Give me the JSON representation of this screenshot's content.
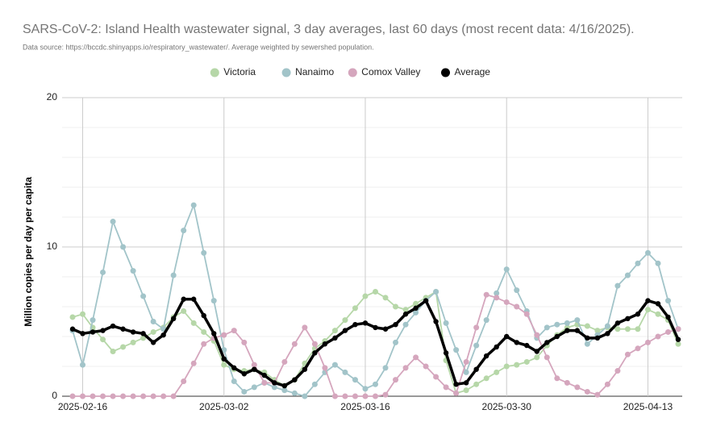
{
  "chart_data": {
    "type": "line",
    "title": "SARS-CoV-2: Island Health wastewater signal, 3 day averages, last 60 days (most recent data: 4/16/2025).",
    "subtitle": "Data source: https://bccdc.shinyapps.io/respiratory_wastewater/. Average weighted by sewershed population.",
    "y_label": "Million copies per day per capita",
    "legend": "top",
    "grid": true,
    "x": [
      "2025-02-15",
      "2025-02-16",
      "2025-02-17",
      "2025-02-18",
      "2025-02-19",
      "2025-02-20",
      "2025-02-21",
      "2025-02-22",
      "2025-02-23",
      "2025-02-24",
      "2025-02-25",
      "2025-02-26",
      "2025-02-27",
      "2025-02-28",
      "2025-03-01",
      "2025-03-02",
      "2025-03-03",
      "2025-03-04",
      "2025-03-05",
      "2025-03-06",
      "2025-03-07",
      "2025-03-08",
      "2025-03-09",
      "2025-03-10",
      "2025-03-11",
      "2025-03-12",
      "2025-03-13",
      "2025-03-14",
      "2025-03-15",
      "2025-03-16",
      "2025-03-17",
      "2025-03-18",
      "2025-03-19",
      "2025-03-20",
      "2025-03-21",
      "2025-03-22",
      "2025-03-23",
      "2025-03-24",
      "2025-03-25",
      "2025-03-26",
      "2025-03-27",
      "2025-03-28",
      "2025-03-29",
      "2025-03-30",
      "2025-03-31",
      "2025-04-01",
      "2025-04-02",
      "2025-04-03",
      "2025-04-04",
      "2025-04-05",
      "2025-04-06",
      "2025-04-07",
      "2025-04-08",
      "2025-04-09",
      "2025-04-10",
      "2025-04-11",
      "2025-04-12",
      "2025-04-13",
      "2025-04-14",
      "2025-04-15",
      "2025-04-16"
    ],
    "xlim": [
      "2025-02-15",
      "2025-04-16"
    ],
    "xticks": [
      "2025-02-16",
      "2025-03-02",
      "2025-03-16",
      "2025-03-30",
      "2025-04-13"
    ],
    "ylim": [
      0,
      20
    ],
    "yticks": [
      0,
      10,
      20
    ],
    "minor_yticks": [
      2,
      4,
      6,
      8,
      12,
      14,
      16,
      18
    ],
    "series": [
      {
        "name": "Victoria",
        "color": "#b6d7a8",
        "values": [
          5.3,
          5.5,
          4.6,
          3.8,
          3.0,
          3.3,
          3.6,
          3.9,
          4.3,
          4.6,
          5.3,
          5.7,
          4.9,
          4.3,
          3.7,
          2.1,
          1.8,
          1.7,
          1.8,
          1.6,
          1.1,
          0.7,
          1.1,
          2.2,
          3.2,
          3.7,
          4.4,
          5.1,
          5.9,
          6.7,
          7.0,
          6.6,
          6.0,
          5.8,
          6.2,
          6.6,
          7.0,
          2.4,
          0.2,
          0.4,
          0.8,
          1.2,
          1.6,
          2.0,
          2.1,
          2.3,
          2.6,
          3.4,
          4.1,
          4.6,
          4.8,
          4.7,
          4.4,
          4.6,
          4.5,
          4.5,
          4.5,
          5.8,
          5.5,
          5.1,
          3.5
        ]
      },
      {
        "name": "Nanaimo",
        "color": "#a2c4c9",
        "values": [
          4.4,
          2.1,
          5.1,
          8.3,
          11.7,
          10.0,
          8.4,
          6.7,
          5.0,
          4.5,
          8.1,
          11.1,
          12.8,
          9.6,
          6.4,
          3.1,
          1.0,
          0.3,
          0.6,
          0.9,
          0.6,
          0.4,
          0.2,
          0.0,
          0.8,
          1.6,
          2.1,
          1.6,
          1.1,
          0.5,
          0.8,
          1.9,
          3.6,
          4.8,
          5.6,
          6.4,
          7.0,
          4.9,
          3.1,
          1.6,
          3.4,
          5.1,
          6.9,
          8.5,
          7.1,
          5.7,
          3.9,
          4.6,
          4.8,
          4.9,
          5.1,
          3.5,
          4.1,
          4.7,
          7.4,
          8.1,
          8.9,
          9.6,
          8.9,
          6.4,
          4.5
        ]
      },
      {
        "name": "Comox Valley",
        "color": "#d5a6bd",
        "values": [
          0,
          0,
          0,
          0,
          0,
          0,
          0,
          0,
          0,
          0,
          0,
          1.0,
          2.2,
          3.5,
          3.9,
          4.1,
          4.4,
          3.6,
          2.1,
          0.9,
          0.9,
          2.3,
          3.5,
          4.6,
          3.5,
          1.9,
          0,
          0,
          0,
          0,
          0,
          0.1,
          1.1,
          1.9,
          2.6,
          2.0,
          1.3,
          0.6,
          0.2,
          2.3,
          4.6,
          6.8,
          6.6,
          6.3,
          6.0,
          5.5,
          4.1,
          2.6,
          1.2,
          0.9,
          0.6,
          0.3,
          0.1,
          0.8,
          1.7,
          2.8,
          3.2,
          3.6,
          4.0,
          4.3,
          4.5
        ]
      },
      {
        "name": "Average",
        "color": "#000000",
        "values": [
          4.5,
          4.2,
          4.3,
          4.4,
          4.7,
          4.5,
          4.3,
          4.2,
          3.6,
          4.1,
          5.2,
          6.5,
          6.5,
          5.4,
          4.2,
          2.5,
          1.9,
          1.5,
          1.8,
          1.4,
          0.9,
          0.7,
          1.1,
          1.8,
          2.9,
          3.5,
          3.9,
          4.4,
          4.8,
          4.9,
          4.6,
          4.5,
          4.8,
          5.5,
          5.9,
          6.4,
          5.0,
          2.9,
          0.8,
          0.9,
          1.8,
          2.7,
          3.3,
          4.0,
          3.6,
          3.4,
          3.0,
          3.6,
          4.0,
          4.4,
          4.4,
          3.9,
          3.9,
          4.2,
          4.9,
          5.2,
          5.5,
          6.4,
          6.2,
          5.3,
          3.8
        ]
      }
    ]
  }
}
